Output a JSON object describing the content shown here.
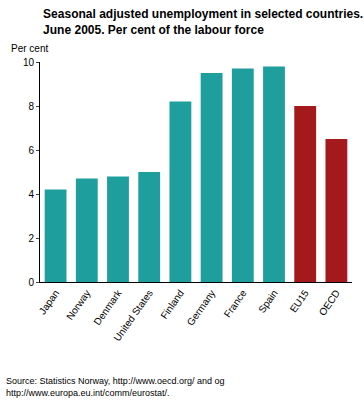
{
  "chart_data": {
    "type": "bar",
    "title": [
      "Seasonal adjusted unemployment in selected countries.",
      "June 2005. Per cent of the labour force"
    ],
    "ylabel": "Per cent",
    "source": [
      "Source: Statistics Norway, http://www.oecd.org/ and og",
      "http://www.europa.eu.int/comm/eurostat/."
    ],
    "categories": [
      "Japan",
      "Norway",
      "Denmark",
      "United States",
      "Finland",
      "Germany",
      "France",
      "Spain",
      "EU15",
      "OECD"
    ],
    "values": [
      4.2,
      4.7,
      4.8,
      5.0,
      8.2,
      9.5,
      9.7,
      9.8,
      8.0,
      6.5
    ],
    "colors": [
      "#1f9e9e",
      "#1f9e9e",
      "#1f9e9e",
      "#1f9e9e",
      "#1f9e9e",
      "#1f9e9e",
      "#1f9e9e",
      "#1f9e9e",
      "#a3191c",
      "#a3191c"
    ],
    "ylim": [
      0,
      10
    ],
    "yticks": [
      0,
      2,
      4,
      6,
      8,
      10
    ],
    "grid": false
  }
}
